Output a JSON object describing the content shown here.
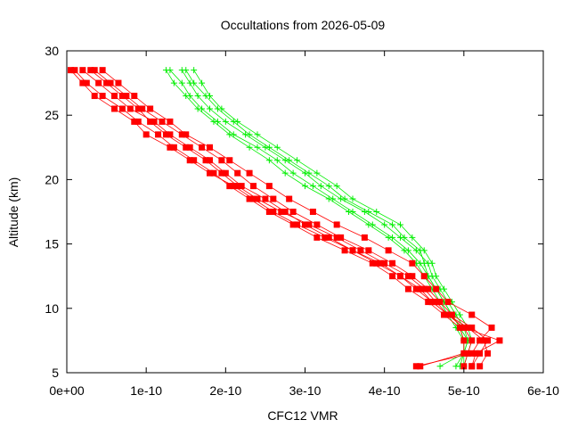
{
  "chart_data": {
    "type": "scatter",
    "title": "Occultations from 2026-05-09",
    "xlabel": "CFC12 VMR",
    "ylabel": "Altitude (km)",
    "xlim": [
      0,
      6e-10
    ],
    "ylim": [
      5,
      30
    ],
    "xticks": [
      {
        "value": 0,
        "label": "0e+00"
      },
      {
        "value": 1e-10,
        "label": "1e-10"
      },
      {
        "value": 2e-10,
        "label": "2e-10"
      },
      {
        "value": 3e-10,
        "label": "3e-10"
      },
      {
        "value": 4e-10,
        "label": "4e-10"
      },
      {
        "value": 5e-10,
        "label": "5e-10"
      },
      {
        "value": 6e-10,
        "label": "6e-10"
      }
    ],
    "yticks": [
      {
        "value": 5,
        "label": "5"
      },
      {
        "value": 10,
        "label": "10"
      },
      {
        "value": 15,
        "label": "15"
      },
      {
        "value": 20,
        "label": "20"
      },
      {
        "value": 25,
        "label": "25"
      },
      {
        "value": 30,
        "label": "30"
      }
    ],
    "grid": false,
    "legend": "none",
    "altitudes": [
      28.5,
      27.5,
      26.5,
      25.5,
      24.5,
      23.5,
      22.5,
      21.5,
      20.5,
      19.5,
      18.5,
      17.5,
      16.5,
      15.5,
      14.5,
      13.5,
      12.5,
      11.5,
      10.5,
      9.5,
      8.5,
      7.5,
      6.5,
      5.5
    ],
    "series": [
      {
        "color": "#ff0000",
        "marker": "square",
        "values": [
          2e-11,
          4e-11,
          6e-11,
          8e-11,
          1.1e-10,
          1.3e-10,
          1.55e-10,
          1.8e-10,
          2e-10,
          2.2e-10,
          2.5e-10,
          2.75e-10,
          3e-10,
          3.3e-10,
          3.6e-10,
          3.95e-10,
          4.2e-10,
          4.4e-10,
          4.6e-10,
          4.8e-10,
          5e-10,
          5.1e-10,
          5.05e-10,
          5e-10
        ]
      },
      {
        "color": "#ff0000",
        "marker": "square",
        "values": [
          3.5e-11,
          5.5e-11,
          7.5e-11,
          9.5e-11,
          1.2e-10,
          1.45e-10,
          1.7e-10,
          1.95e-10,
          2.15e-10,
          2.35e-10,
          2.6e-10,
          2.85e-10,
          3.15e-10,
          3.45e-10,
          3.8e-10,
          4.1e-10,
          4.35e-10,
          4.55e-10,
          4.7e-10,
          4.85e-10,
          5.1e-10,
          5.3e-10,
          5.2e-10,
          5.1e-10
        ]
      },
      {
        "color": "#ff0000",
        "marker": "square",
        "values": [
          1e-11,
          2.5e-11,
          4.5e-11,
          7e-11,
          9e-11,
          1.15e-10,
          1.35e-10,
          1.6e-10,
          1.85e-10,
          2.05e-10,
          2.3e-10,
          2.55e-10,
          2.85e-10,
          3.15e-10,
          3.5e-10,
          3.85e-10,
          4.1e-10,
          4.3e-10,
          4.55e-10,
          4.75e-10,
          4.95e-10,
          5e-10,
          5e-10,
          4.45e-10
        ]
      },
      {
        "color": "#ff0000",
        "marker": "square",
        "values": [
          3e-11,
          5e-11,
          7e-11,
          9e-11,
          1.05e-10,
          1.25e-10,
          1.5e-10,
          1.75e-10,
          1.95e-10,
          2.15e-10,
          2.4e-10,
          2.7e-10,
          3.05e-10,
          3.4e-10,
          3.7e-10,
          4e-10,
          4.3e-10,
          4.5e-10,
          4.65e-10,
          4.8e-10,
          5.05e-10,
          5.25e-10,
          5.3e-10,
          5.2e-10
        ]
      },
      {
        "color": "#ff0000",
        "marker": "square",
        "values": [
          5e-12,
          2e-11,
          3.5e-11,
          6e-11,
          8.5e-11,
          1e-10,
          1.3e-10,
          1.55e-10,
          1.8e-10,
          2.1e-10,
          2.35e-10,
          2.6e-10,
          2.9e-10,
          3.25e-10,
          3.6e-10,
          3.9e-10,
          4.2e-10,
          4.45e-10,
          4.6e-10,
          4.8e-10,
          5e-10,
          5.45e-10,
          5.15e-10,
          5.1e-10
        ]
      },
      {
        "color": "#ff0000",
        "marker": "square",
        "values": [
          4.5e-11,
          6.5e-11,
          8.5e-11,
          1.05e-10,
          1.3e-10,
          1.5e-10,
          1.8e-10,
          2.05e-10,
          2.3e-10,
          2.55e-10,
          2.8e-10,
          3.1e-10,
          3.4e-10,
          3.75e-10,
          4.05e-10,
          4.35e-10,
          4.5e-10,
          4.65e-10,
          4.8e-10,
          5.1e-10,
          5.35e-10,
          5.2e-10,
          5.1e-10,
          4.4e-10
        ]
      },
      {
        "color": "#00ee00",
        "marker": "plus",
        "values": [
          1.3e-10,
          1.45e-10,
          1.55e-10,
          1.7e-10,
          1.9e-10,
          2.1e-10,
          2.4e-10,
          2.65e-10,
          2.85e-10,
          3.1e-10,
          3.35e-10,
          3.6e-10,
          3.85e-10,
          4.1e-10,
          4.3e-10,
          4.45e-10,
          4.55e-10,
          4.65e-10,
          4.75e-10,
          4.85e-10,
          4.95e-10,
          5e-10,
          5e-10,
          4.7e-10
        ]
      },
      {
        "color": "#00ee00",
        "marker": "plus",
        "values": [
          1.45e-10,
          1.55e-10,
          1.65e-10,
          1.8e-10,
          2e-10,
          2.25e-10,
          2.5e-10,
          2.75e-10,
          3e-10,
          3.2e-10,
          3.45e-10,
          3.75e-10,
          4e-10,
          4.2e-10,
          4.4e-10,
          4.55e-10,
          4.6e-10,
          4.7e-10,
          4.8e-10,
          4.9e-10,
          5e-10,
          5.05e-10,
          5e-10,
          4.9e-10
        ]
      },
      {
        "color": "#00ee00",
        "marker": "plus",
        "values": [
          1.6e-10,
          1.7e-10,
          1.8e-10,
          1.95e-10,
          2.15e-10,
          2.4e-10,
          2.65e-10,
          2.9e-10,
          3.15e-10,
          3.4e-10,
          3.6e-10,
          3.9e-10,
          4.2e-10,
          4.35e-10,
          4.5e-10,
          4.6e-10,
          4.65e-10,
          4.75e-10,
          4.85e-10,
          4.95e-10,
          5.05e-10,
          5.1e-10,
          5.05e-10,
          5e-10
        ]
      },
      {
        "color": "#00ee00",
        "marker": "plus",
        "values": [
          1.25e-10,
          1.35e-10,
          1.5e-10,
          1.65e-10,
          1.85e-10,
          2.05e-10,
          2.3e-10,
          2.55e-10,
          2.75e-10,
          3e-10,
          3.3e-10,
          3.55e-10,
          3.8e-10,
          4.05e-10,
          4.25e-10,
          4.4e-10,
          4.5e-10,
          4.6e-10,
          4.7e-10,
          4.8e-10,
          4.9e-10,
          5e-10,
          5e-10,
          4.95e-10
        ]
      },
      {
        "color": "#00ee00",
        "marker": "plus",
        "values": [
          1.5e-10,
          1.6e-10,
          1.75e-10,
          1.9e-10,
          2.1e-10,
          2.3e-10,
          2.55e-10,
          2.8e-10,
          3.05e-10,
          3.3e-10,
          3.5e-10,
          3.8e-10,
          4.1e-10,
          4.25e-10,
          4.45e-10,
          4.5e-10,
          4.55e-10,
          4.65e-10,
          4.75e-10,
          4.85e-10,
          4.95e-10,
          5.05e-10,
          5e-10,
          5e-10
        ]
      }
    ]
  }
}
